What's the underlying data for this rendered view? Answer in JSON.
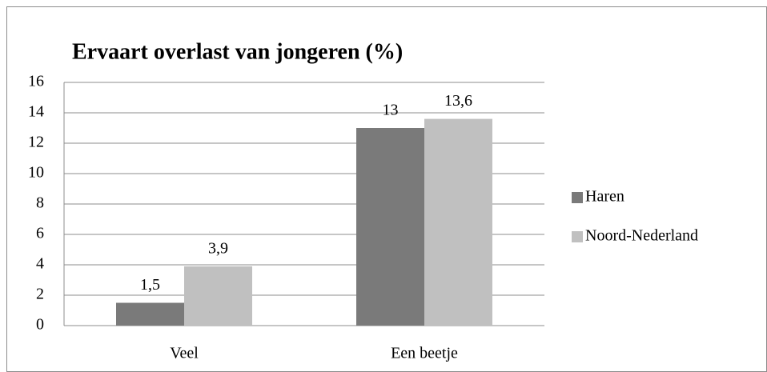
{
  "chart_data": {
    "type": "bar",
    "title": "Ervaart overlast van jongeren (%)",
    "categories": [
      "Veel",
      "Een beetje"
    ],
    "series": [
      {
        "name": "Haren",
        "color": "#7a7a7a",
        "values": [
          1.5,
          13
        ],
        "value_labels": [
          "1,5",
          "13"
        ]
      },
      {
        "name": "Noord-Nederland",
        "color": "#c0c0c0",
        "values": [
          3.9,
          13.6
        ],
        "value_labels": [
          "3,9",
          "13,6"
        ]
      }
    ],
    "ylim": [
      0,
      16
    ],
    "yticks": [
      0,
      2,
      4,
      6,
      8,
      10,
      12,
      14,
      16
    ],
    "grid": true,
    "legend": "right"
  }
}
